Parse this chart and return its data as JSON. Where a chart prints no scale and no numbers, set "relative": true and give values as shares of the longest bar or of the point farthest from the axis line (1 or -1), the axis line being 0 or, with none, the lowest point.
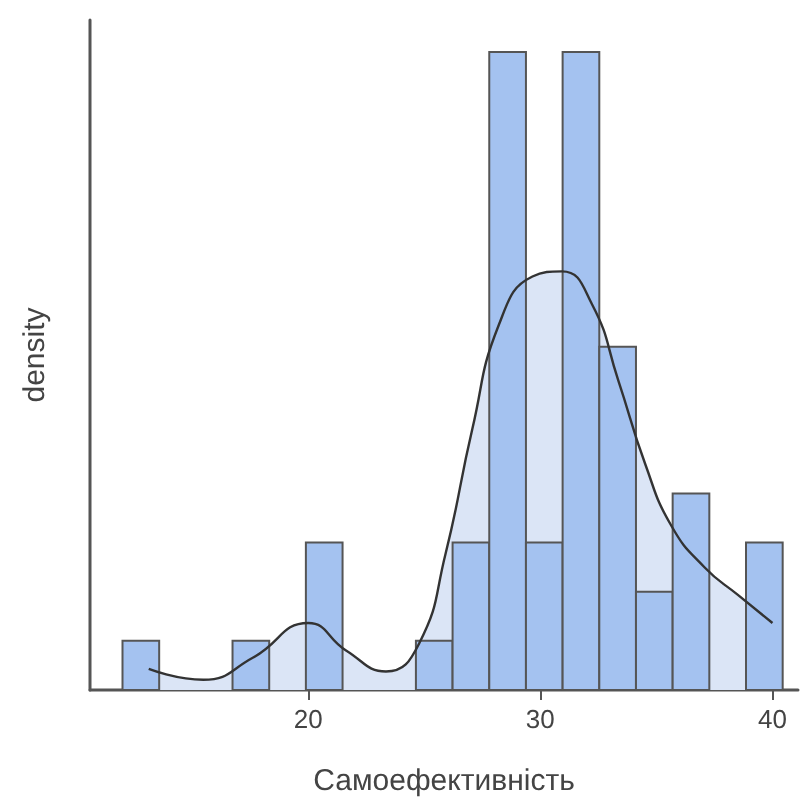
{
  "chart_data": {
    "type": "histogram",
    "xlabel": "Самоефективність",
    "ylabel": "density",
    "relative": true,
    "grid": false,
    "legend": false,
    "xlim": [
      10.6,
      41.1
    ],
    "xticks": [
      20,
      30,
      40
    ],
    "series": [
      {
        "color": "#a4c2f0",
        "bins": [
          12,
          13.58,
          15.16,
          16.74,
          18.32,
          19.9,
          21.48,
          23.06,
          24.64,
          26.22,
          27.8,
          29.38,
          30.96,
          32.54,
          34.12,
          35.7,
          37.28,
          38.86,
          40.44
        ],
        "values": [
          0.077,
          0,
          0,
          0.077,
          0,
          0.231,
          0,
          0,
          0.077,
          0.231,
          1,
          0.231,
          1,
          0.538,
          0.154,
          0.308,
          0,
          0.231
        ]
      },
      {
        "type": "area",
        "color": "#dbe5f6",
        "x": [
          13.13,
          15.48,
          17.63,
          20.0,
          21.63,
          23.35,
          24.78,
          25.92,
          27.07,
          28.21,
          29.66,
          30.93,
          32.22,
          33.36,
          34.51,
          35.65,
          37.08,
          38.51,
          40.0
        ],
        "values": [
          0.033,
          0.016,
          0.051,
          0.105,
          0.062,
          0.029,
          0.073,
          0.214,
          0.409,
          0.572,
          0.648,
          0.656,
          0.605,
          0.485,
          0.355,
          0.257,
          0.192,
          0.149,
          0.105
        ]
      }
    ]
  }
}
